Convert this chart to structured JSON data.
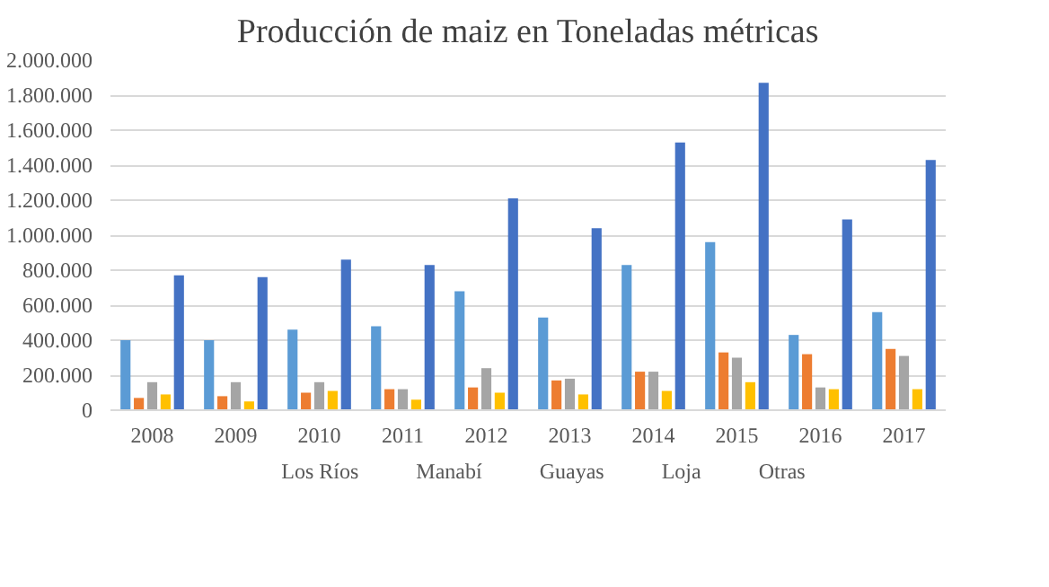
{
  "chart_data": {
    "type": "bar",
    "title": "Producción de maiz en Toneladas métricas",
    "categories": [
      "2008",
      "2009",
      "2010",
      "2011",
      "2012",
      "2013",
      "2014",
      "2015",
      "2016",
      "2017"
    ],
    "series": [
      {
        "name": "Los Ríos",
        "color": "#5b9bd5",
        "values": [
          400000,
          400000,
          460000,
          480000,
          680000,
          530000,
          830000,
          960000,
          430000,
          560000
        ]
      },
      {
        "name": "Manabí",
        "color": "#ed7d31",
        "values": [
          70000,
          80000,
          100000,
          120000,
          130000,
          170000,
          220000,
          330000,
          320000,
          350000
        ]
      },
      {
        "name": "Guayas",
        "color": "#a5a5a5",
        "values": [
          160000,
          160000,
          160000,
          120000,
          240000,
          180000,
          220000,
          300000,
          130000,
          310000
        ]
      },
      {
        "name": "Loja",
        "color": "#ffc000",
        "values": [
          90000,
          50000,
          110000,
          60000,
          100000,
          90000,
          110000,
          160000,
          120000,
          120000
        ]
      },
      {
        "name": "Otras",
        "color": "#4472c4",
        "values": [
          770000,
          760000,
          860000,
          830000,
          1210000,
          1040000,
          1530000,
          1870000,
          1090000,
          1430000
        ]
      }
    ],
    "ylim": [
      0,
      2000000
    ],
    "yticks": [
      0,
      {
        "value": 200000,
        "label": "200.000"
      },
      {
        "value": 400000,
        "label": "400.000"
      },
      {
        "value": 600000,
        "label": "600.000"
      },
      {
        "value": 800000,
        "label": "800.000"
      },
      {
        "value": 1000000,
        "label": "1.000.000"
      },
      {
        "value": 1200000,
        "label": "1.200.000"
      },
      {
        "value": 1400000,
        "label": "1.400.000"
      },
      {
        "value": 1600000,
        "label": "1.600.000"
      },
      {
        "value": 1800000,
        "label": "1.800.000"
      },
      {
        "value": 2000000,
        "label": "2.000.000"
      }
    ],
    "grid": "y",
    "legend": "bottom"
  }
}
